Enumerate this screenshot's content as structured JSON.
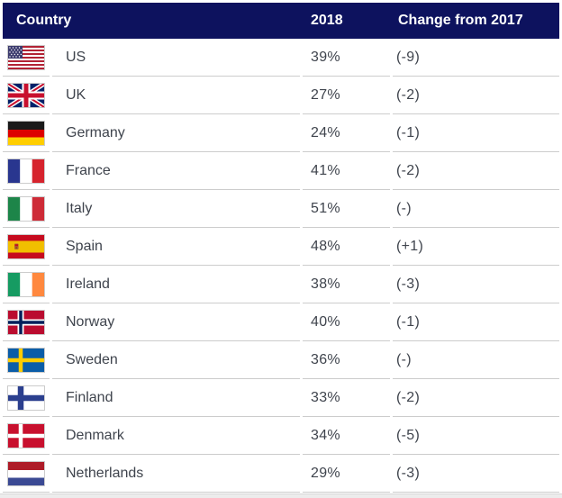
{
  "table": {
    "columns": {
      "country": "Country",
      "year": "2018",
      "change": "Change from 2017"
    },
    "rows": [
      {
        "flag": "us",
        "country": "US",
        "value": "39%",
        "change": "(-9)"
      },
      {
        "flag": "uk",
        "country": "UK",
        "value": "27%",
        "change": "(-2)"
      },
      {
        "flag": "germany",
        "country": "Germany",
        "value": "24%",
        "change": "(-1)"
      },
      {
        "flag": "france",
        "country": "France",
        "value": "41%",
        "change": "(-2)"
      },
      {
        "flag": "italy",
        "country": "Italy",
        "value": "51%",
        "change": "(-)"
      },
      {
        "flag": "spain",
        "country": "Spain",
        "value": "48%",
        "change": "(+1)"
      },
      {
        "flag": "ireland",
        "country": "Ireland",
        "value": "38%",
        "change": "(-3)"
      },
      {
        "flag": "norway",
        "country": "Norway",
        "value": "40%",
        "change": "(-1)"
      },
      {
        "flag": "sweden",
        "country": "Sweden",
        "value": "36%",
        "change": "(-)"
      },
      {
        "flag": "finland",
        "country": "Finland",
        "value": "33%",
        "change": "(-2)"
      },
      {
        "flag": "denmark",
        "country": "Denmark",
        "value": "34%",
        "change": "(-5)"
      },
      {
        "flag": "netherlands",
        "country": "Netherlands",
        "value": "29%",
        "change": "(-3)"
      }
    ]
  },
  "colors": {
    "header_bg": "#0d125e",
    "header_text": "#ffffff",
    "row_text": "#3f444d",
    "separator": "#cccccc"
  },
  "chart_data": {
    "type": "table",
    "title": "",
    "columns": [
      "Country",
      "2018",
      "Change from 2017"
    ],
    "rows": [
      [
        "US",
        "39%",
        "(-9)"
      ],
      [
        "UK",
        "27%",
        "(-2)"
      ],
      [
        "Germany",
        "24%",
        "(-1)"
      ],
      [
        "France",
        "41%",
        "(-2)"
      ],
      [
        "Italy",
        "51%",
        "(-)"
      ],
      [
        "Spain",
        "48%",
        "(+1)"
      ],
      [
        "Ireland",
        "38%",
        "(-3)"
      ],
      [
        "Norway",
        "40%",
        "(-1)"
      ],
      [
        "Sweden",
        "36%",
        "(-)"
      ],
      [
        "Finland",
        "33%",
        "(-2)"
      ],
      [
        "Denmark",
        "34%",
        "(-5)"
      ],
      [
        "Netherlands",
        "29%",
        "(-3)"
      ]
    ],
    "values_2018_percent": [
      39,
      27,
      24,
      41,
      51,
      48,
      38,
      40,
      36,
      33,
      34,
      29
    ],
    "change_from_2017": [
      -9,
      -2,
      -1,
      -2,
      null,
      1,
      -3,
      -1,
      null,
      -2,
      -5,
      -3
    ]
  }
}
